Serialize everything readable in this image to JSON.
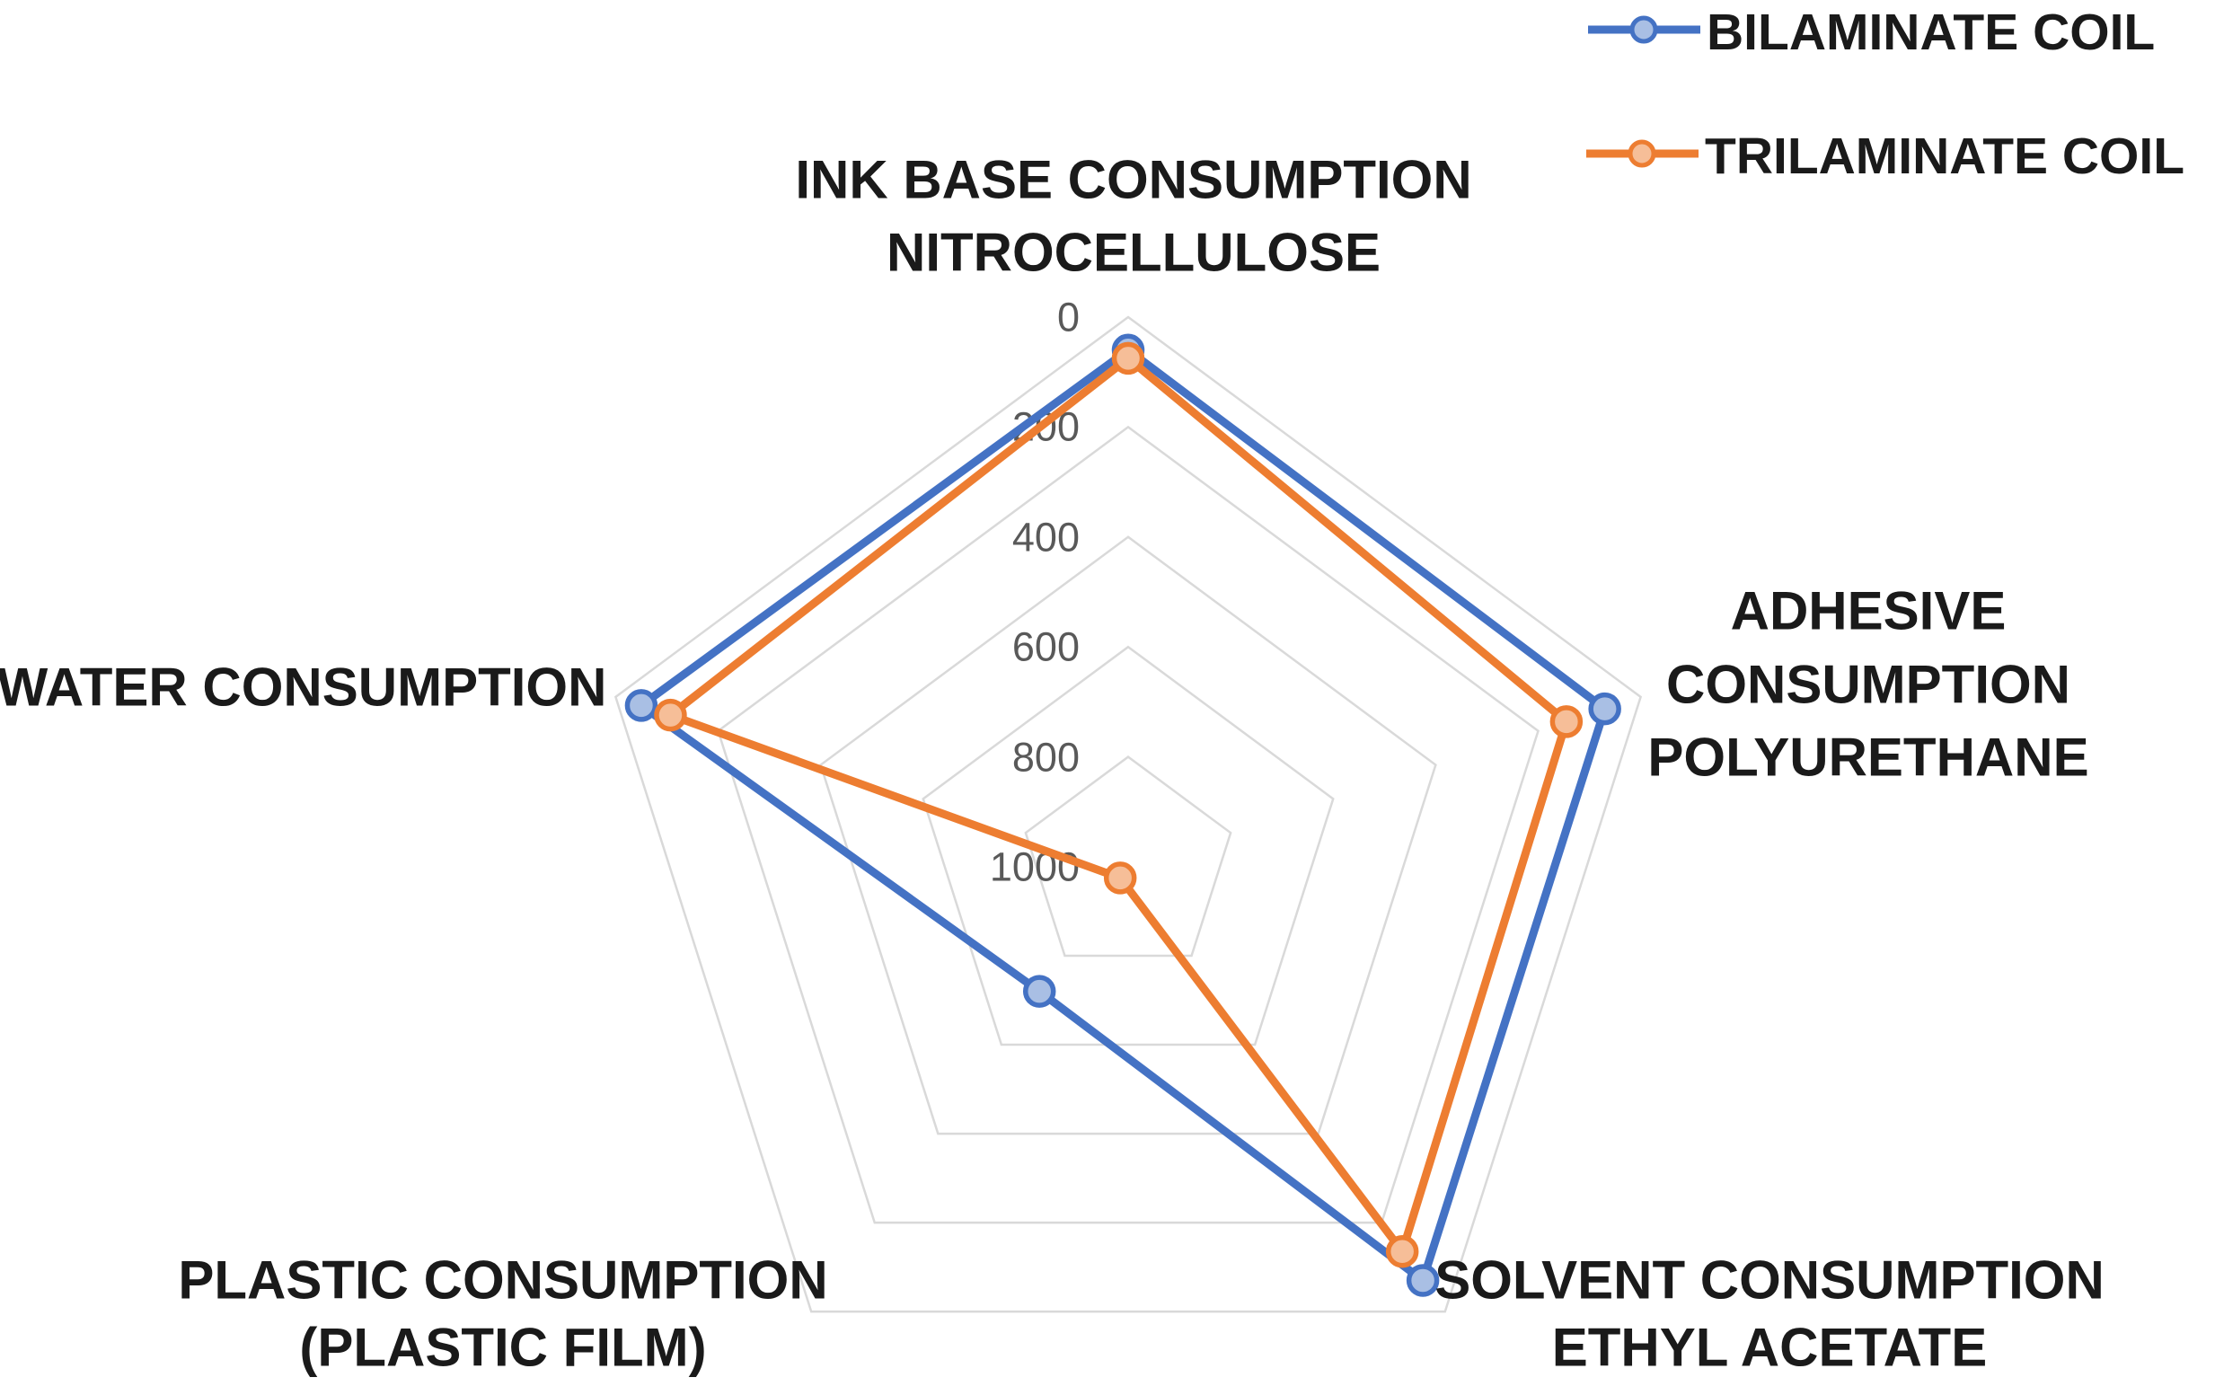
{
  "chart_data": {
    "type": "radar",
    "axis": {
      "min": 0,
      "max": 1000,
      "step": 200,
      "reversed": true,
      "tick_labels": [
        "0",
        "200",
        "400",
        "600",
        "800",
        "1000"
      ],
      "gridline_values": [
        0,
        200,
        400,
        600,
        800
      ],
      "center_value": 1000
    },
    "categories": [
      {
        "id": "ink",
        "label_lines": [
          "INK BASE CONSUMPTION",
          "NITROCELLULOSE"
        ]
      },
      {
        "id": "adhesive",
        "label_lines": [
          "ADHESIVE",
          "CONSUMPTION",
          "POLYURETHANE"
        ]
      },
      {
        "id": "solvent",
        "label_lines": [
          "SOLVENT CONSUMPTION",
          "ETHYL ACETATE"
        ]
      },
      {
        "id": "plastic",
        "label_lines": [
          "PLASTIC CONSUMPTION",
          "(PLASTIC FILM)"
        ]
      },
      {
        "id": "water",
        "label_lines": [
          "WATER CONSUMPTION"
        ]
      }
    ],
    "series": [
      {
        "name": "BILAMINATE COIL",
        "color": "#4472C4",
        "marker_fill": "#A9BFE4",
        "values": [
          60,
          70,
          70,
          720,
          50
        ]
      },
      {
        "name": "TRILAMINATE COIL",
        "color": "#ED7D31",
        "marker_fill": "#F6BE98",
        "values": [
          75,
          145,
          135,
          975,
          107
        ]
      }
    ],
    "grid_color": "#D9D9D9",
    "tick_color": "#595959",
    "label_color": "#1A1A1A",
    "legend": {
      "position": "top-right"
    }
  }
}
